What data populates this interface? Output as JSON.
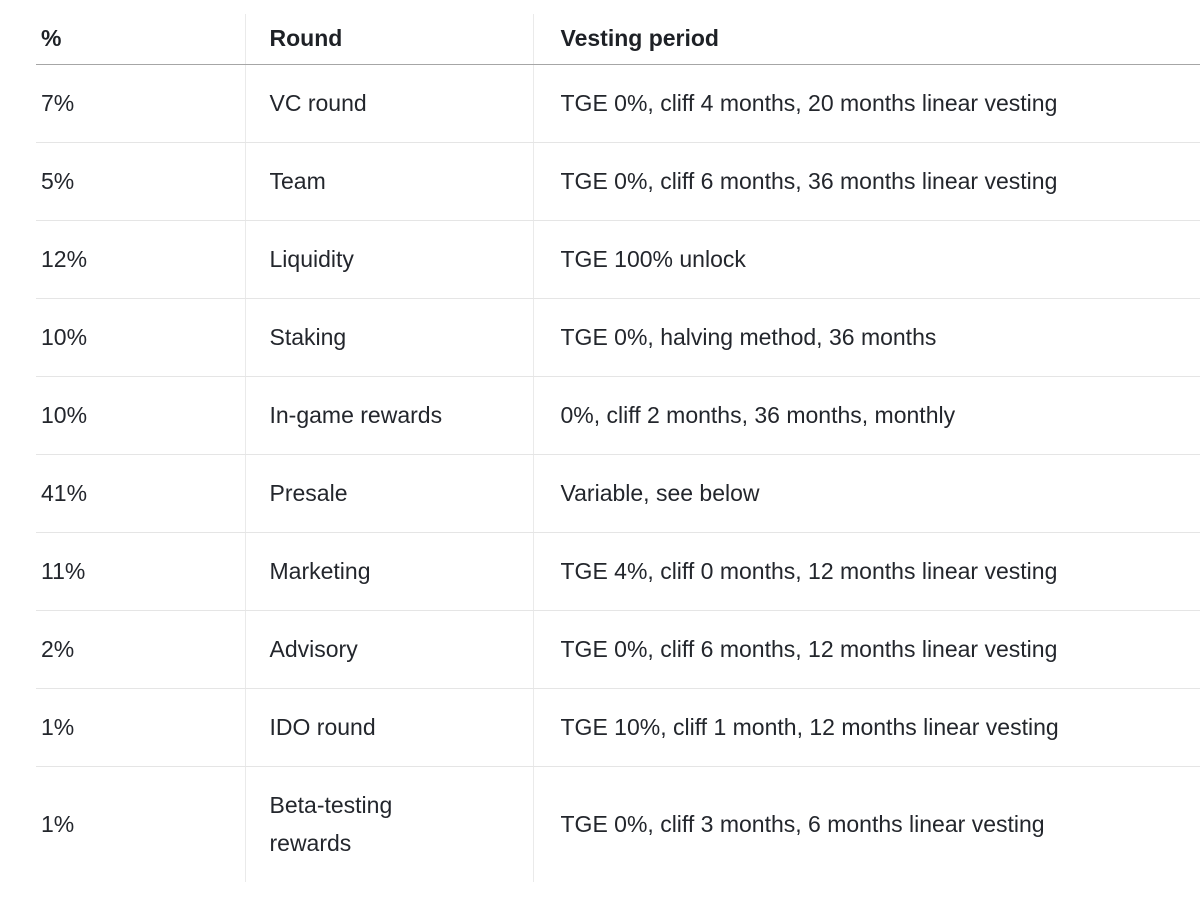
{
  "table": {
    "name": "token-allocation-vesting-table",
    "columns": [
      {
        "key": "percent",
        "label": "%"
      },
      {
        "key": "round",
        "label": "Round"
      },
      {
        "key": "vesting",
        "label": "Vesting period"
      }
    ],
    "rows": [
      {
        "percent": "7%",
        "round": "VC round",
        "vesting": "TGE 0%, cliff 4 months, 20 months linear vesting"
      },
      {
        "percent": "5%",
        "round": "Team",
        "vesting": "TGE 0%, cliff 6 months, 36 months linear vesting"
      },
      {
        "percent": "12%",
        "round": "Liquidity",
        "vesting": "TGE 100% unlock"
      },
      {
        "percent": "10%",
        "round": "Staking",
        "vesting": "TGE 0%, halving method, 36 months"
      },
      {
        "percent": "10%",
        "round": "In-game rewards",
        "vesting": "0%, cliff 2 months, 36 months, monthly"
      },
      {
        "percent": "41%",
        "round": "Presale",
        "vesting": "Variable, see below"
      },
      {
        "percent": "11%",
        "round": "Marketing",
        "vesting": "TGE 4%, cliff 0 months, 12 months linear vesting"
      },
      {
        "percent": "2%",
        "round": "Advisory",
        "vesting": "TGE 0%, cliff 6 months, 12 months linear vesting"
      },
      {
        "percent": "1%",
        "round": "IDO round",
        "vesting": "TGE 10%, cliff 1 month, 12 months linear vesting"
      },
      {
        "percent": "1%",
        "round": "Beta-testing rewards",
        "vesting": "TGE 0%, cliff 3 months, 6 months linear vesting"
      }
    ]
  },
  "colors": {
    "text": "#23262c",
    "header_text": "#1e2126",
    "row_border": "#e5e5e5",
    "column_border": "#eaeaea",
    "header_border": "#a6a6a6",
    "background": "#ffffff"
  }
}
